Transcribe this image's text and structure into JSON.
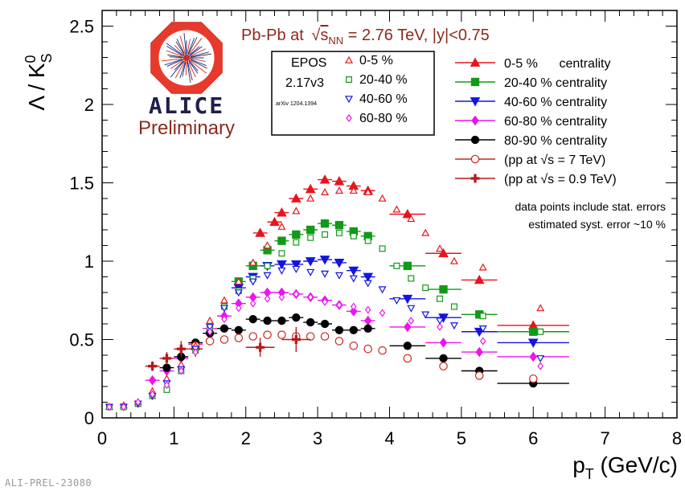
{
  "footer_id": "ALI-PREL-23080",
  "chart_data": {
    "type": "scatter",
    "title": "Pb-Pb at √sNN = 2.76 TeV, |y|<0.75",
    "title_parts": {
      "prefix": "Pb-Pb at ",
      "sqrt": "√",
      "s": "s",
      "sub": "NN",
      "suffix": " = 2.76 TeV, |y|<0.75"
    },
    "ylabel": "Λ / K⁰S",
    "xlabel": "pT (GeV/c)",
    "xlim": [
      0,
      8
    ],
    "ylim": [
      0,
      2.6
    ],
    "x_ticks": [
      "0",
      "1",
      "2",
      "3",
      "4",
      "5",
      "6",
      "7",
      "8"
    ],
    "y_ticks": [
      "0",
      "0.5",
      "1",
      "1.5",
      "2",
      "2.5"
    ],
    "logo": {
      "name": "ALICE",
      "subtitle": "Preliminary"
    },
    "model_legend": {
      "title_line1": "EPOS",
      "title_line2": "2.17v3",
      "ref": "arXiv 1204.1394",
      "entries": [
        "0-5 %",
        "20-40 %",
        "40-60 %",
        "60-80 %"
      ]
    },
    "notes": [
      "data points include stat. errors",
      "estimated syst. error ~10 %"
    ],
    "colors": {
      "c0_5": "#e8141c",
      "c20_40": "#119a18",
      "c40_60": "#1414e0",
      "c60_80": "#ee14ee",
      "c80_90": "#000000",
      "pp7": "#c8281e",
      "pp09": "#b81a1a"
    },
    "series": [
      {
        "name": "0-5 %      centrality",
        "kind": "data",
        "marker": "triangle-up",
        "filled": true,
        "color": "#e8141c",
        "x": [
          2.2,
          2.4,
          2.5,
          2.7,
          2.9,
          3.1,
          3.3,
          3.5,
          3.7,
          4.25,
          4.75,
          5.25,
          6.0
        ],
        "y": [
          1.18,
          1.25,
          1.31,
          1.4,
          1.46,
          1.52,
          1.51,
          1.48,
          1.45,
          1.3,
          1.05,
          0.88,
          0.59
        ],
        "xerr": [
          0.1,
          0.1,
          0.1,
          0.1,
          0.1,
          0.1,
          0.1,
          0.1,
          0.1,
          0.25,
          0.25,
          0.25,
          0.5
        ]
      },
      {
        "name": "20-40 % centrality",
        "kind": "data",
        "marker": "square",
        "filled": true,
        "color": "#119a18",
        "x": [
          1.9,
          2.1,
          2.3,
          2.5,
          2.7,
          2.9,
          3.1,
          3.3,
          3.5,
          3.7,
          4.25,
          4.75,
          5.25,
          6.0
        ],
        "y": [
          0.87,
          0.97,
          1.07,
          1.13,
          1.17,
          1.2,
          1.24,
          1.23,
          1.19,
          1.16,
          0.97,
          0.82,
          0.66,
          0.55
        ],
        "xerr": [
          0.1,
          0.1,
          0.1,
          0.1,
          0.1,
          0.1,
          0.1,
          0.1,
          0.1,
          0.1,
          0.25,
          0.25,
          0.25,
          0.5
        ]
      },
      {
        "name": "40-60 % centrality",
        "kind": "data",
        "marker": "triangle-down",
        "filled": true,
        "color": "#1414e0",
        "x": [
          1.9,
          2.1,
          2.3,
          2.5,
          2.7,
          2.9,
          3.1,
          3.3,
          3.5,
          3.7,
          4.25,
          4.75,
          5.25,
          6.0
        ],
        "y": [
          0.83,
          0.9,
          0.97,
          0.98,
          0.98,
          1.0,
          1.01,
          0.99,
          0.94,
          0.9,
          0.76,
          0.64,
          0.55,
          0.48
        ],
        "xerr": [
          0.1,
          0.1,
          0.1,
          0.1,
          0.1,
          0.1,
          0.1,
          0.1,
          0.1,
          0.1,
          0.25,
          0.25,
          0.25,
          0.5
        ]
      },
      {
        "name": "60-80 % centrality",
        "kind": "data",
        "marker": "diamond",
        "filled": true,
        "color": "#ee14ee",
        "x": [
          0.7,
          0.9,
          1.1,
          1.3,
          1.5,
          1.7,
          1.9,
          2.1,
          2.3,
          2.5,
          2.7,
          2.9,
          3.1,
          3.3,
          3.5,
          3.7,
          4.25,
          4.75,
          5.25,
          6.0
        ],
        "y": [
          0.24,
          0.3,
          0.38,
          0.47,
          0.57,
          0.65,
          0.73,
          0.77,
          0.8,
          0.8,
          0.79,
          0.77,
          0.75,
          0.72,
          0.68,
          0.62,
          0.58,
          0.48,
          0.42,
          0.39
        ],
        "xerr": [
          0.1,
          0.1,
          0.1,
          0.1,
          0.1,
          0.1,
          0.1,
          0.1,
          0.1,
          0.1,
          0.1,
          0.1,
          0.1,
          0.1,
          0.1,
          0.1,
          0.25,
          0.25,
          0.25,
          0.5
        ]
      },
      {
        "name": "80-90 % centrality",
        "kind": "data",
        "marker": "circle",
        "filled": true,
        "color": "#000000",
        "x": [
          0.9,
          1.1,
          1.3,
          1.5,
          1.7,
          1.9,
          2.1,
          2.3,
          2.5,
          2.7,
          2.9,
          3.1,
          3.3,
          3.5,
          3.7,
          4.25,
          4.75,
          5.25,
          6.0
        ],
        "y": [
          0.32,
          0.39,
          0.48,
          0.54,
          0.57,
          0.56,
          0.63,
          0.62,
          0.62,
          0.64,
          0.61,
          0.6,
          0.56,
          0.56,
          0.57,
          0.46,
          0.38,
          0.3,
          0.22
        ],
        "xerr": [
          0.1,
          0.1,
          0.1,
          0.1,
          0.1,
          0.1,
          0.1,
          0.1,
          0.1,
          0.1,
          0.1,
          0.1,
          0.1,
          0.1,
          0.1,
          0.25,
          0.25,
          0.25,
          0.5
        ]
      },
      {
        "name": "(pp at √s = 7 TeV)",
        "kind": "data",
        "marker": "circle",
        "filled": false,
        "color": "#c8281e",
        "x": [
          1.3,
          1.5,
          1.7,
          1.9,
          2.1,
          2.3,
          2.5,
          2.7,
          2.9,
          3.1,
          3.3,
          3.5,
          3.7,
          3.9,
          4.25,
          4.75,
          5.25,
          6.0
        ],
        "y": [
          0.46,
          0.49,
          0.5,
          0.51,
          0.52,
          0.53,
          0.53,
          0.52,
          0.52,
          0.52,
          0.49,
          0.46,
          0.44,
          0.43,
          0.38,
          0.33,
          0.27,
          0.25
        ],
        "xerr": [
          0,
          0,
          0,
          0,
          0,
          0,
          0,
          0,
          0,
          0,
          0,
          0,
          0,
          0,
          0,
          0,
          0,
          0
        ]
      },
      {
        "name": "(pp at √s = 0.9 TeV)",
        "kind": "data",
        "marker": "cross",
        "filled": true,
        "color": "#b81a1a",
        "x": [
          0.7,
          0.9,
          1.1,
          1.3,
          2.2,
          2.7
        ],
        "y": [
          0.33,
          0.38,
          0.44,
          0.44,
          0.45,
          0.5
        ],
        "xerr": [
          0.1,
          0.1,
          0.1,
          0.1,
          0.2,
          0.2
        ],
        "yerr": [
          0.03,
          0.04,
          0.05,
          0.05,
          0.06,
          0.08
        ]
      },
      {
        "name": "0-5 %",
        "kind": "model",
        "marker": "triangle-up",
        "filled": false,
        "color": "#e8141c",
        "x": [
          0.1,
          0.3,
          0.5,
          0.7,
          0.9,
          1.1,
          1.3,
          1.5,
          1.7,
          1.9,
          2.1,
          2.3,
          2.5,
          2.7,
          2.9,
          3.1,
          3.3,
          3.5,
          3.7,
          3.9,
          4.1,
          4.3,
          4.5,
          4.7,
          4.9,
          5.3,
          6.1
        ],
        "y": [
          0.07,
          0.08,
          0.1,
          0.17,
          0.25,
          0.34,
          0.46,
          0.62,
          0.75,
          0.87,
          0.99,
          1.1,
          1.22,
          1.32,
          1.4,
          1.44,
          1.45,
          1.45,
          1.44,
          1.4,
          1.33,
          1.27,
          1.18,
          1.08,
          1.0,
          0.96,
          0.7
        ]
      },
      {
        "name": "20-40 %",
        "kind": "model",
        "marker": "square",
        "filled": false,
        "color": "#119a18",
        "x": [
          0.1,
          0.3,
          0.5,
          0.7,
          0.9,
          1.1,
          1.3,
          1.5,
          1.7,
          1.9,
          2.1,
          2.3,
          2.5,
          2.7,
          2.9,
          3.1,
          3.3,
          3.5,
          3.7,
          3.9,
          4.1,
          4.3,
          4.5,
          4.7,
          4.9,
          5.3,
          6.1
        ],
        "y": [
          0.07,
          0.07,
          0.09,
          0.14,
          0.18,
          0.3,
          0.43,
          0.58,
          0.71,
          0.81,
          0.89,
          0.97,
          1.05,
          1.12,
          1.15,
          1.17,
          1.18,
          1.16,
          1.13,
          1.08,
          0.97,
          0.89,
          0.83,
          0.76,
          0.71,
          0.65,
          0.55
        ]
      },
      {
        "name": "40-60 %",
        "kind": "model",
        "marker": "triangle-down",
        "filled": false,
        "color": "#1414e0",
        "x": [
          0.1,
          0.3,
          0.5,
          0.7,
          0.9,
          1.1,
          1.3,
          1.5,
          1.7,
          1.9,
          2.1,
          2.3,
          2.5,
          2.7,
          2.9,
          3.1,
          3.3,
          3.5,
          3.7,
          3.9,
          4.1,
          4.3,
          4.5,
          4.7,
          4.9,
          5.3,
          6.1
        ],
        "y": [
          0.07,
          0.07,
          0.09,
          0.14,
          0.22,
          0.31,
          0.44,
          0.58,
          0.7,
          0.8,
          0.87,
          0.91,
          0.94,
          0.95,
          0.93,
          0.92,
          0.91,
          0.89,
          0.86,
          0.82,
          0.75,
          0.7,
          0.66,
          0.62,
          0.59,
          0.57,
          0.38
        ]
      },
      {
        "name": "60-80 %",
        "kind": "model",
        "marker": "diamond",
        "filled": false,
        "color": "#ee14ee",
        "x": [
          0.1,
          0.3,
          0.5,
          0.7,
          0.9,
          1.1,
          1.3,
          1.5,
          1.7,
          1.9,
          2.1,
          2.3,
          2.5,
          2.7,
          2.9,
          3.1,
          3.3,
          3.5,
          3.7,
          3.9,
          4.3,
          4.7,
          5.3,
          6.1
        ],
        "y": [
          0.07,
          0.07,
          0.1,
          0.15,
          0.21,
          0.3,
          0.42,
          0.55,
          0.63,
          0.7,
          0.73,
          0.76,
          0.77,
          0.79,
          0.77,
          0.74,
          0.72,
          0.71,
          0.69,
          0.67,
          0.62,
          0.58,
          0.49,
          0.33
        ]
      }
    ]
  }
}
